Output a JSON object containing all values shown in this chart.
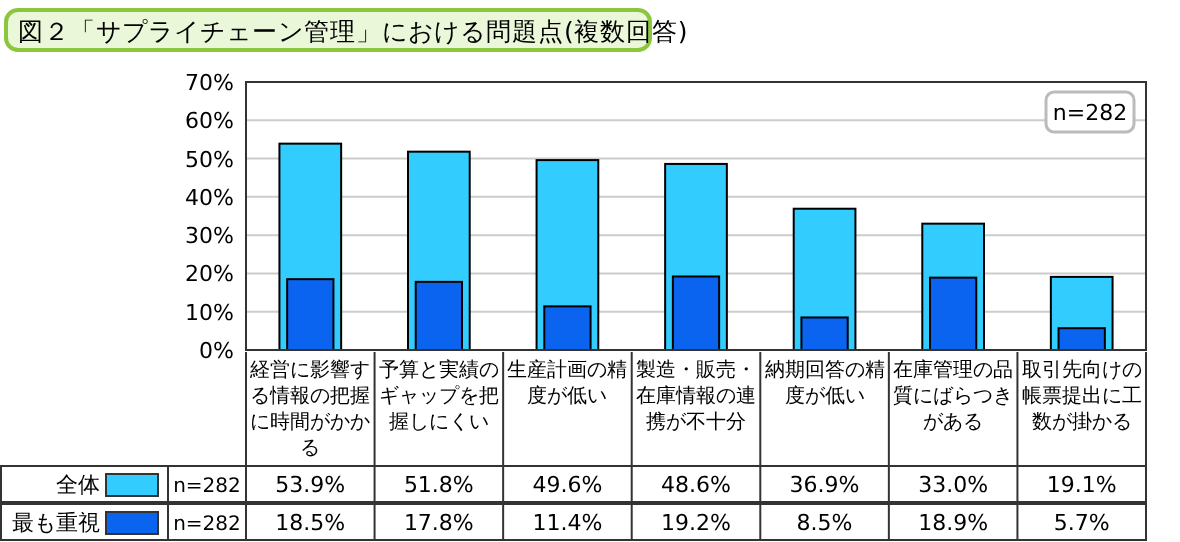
{
  "chart_data": {
    "type": "bar",
    "title": "図２「サプライチェーン管理」における問題点(複数回答)",
    "categories": [
      "経営に影響する情報の把握に時間がかかる",
      "予算と実績のギャップを把握しにくい",
      "生産計画の精度が低い",
      "製造・販売・在庫情報の連携が不十分",
      "納期回答の精度が低い",
      "在庫管理の品質にばらつきがある",
      "取引先向けの帳票提出に工数が掛かる"
    ],
    "series": [
      {
        "name": "全体",
        "color": "#33ccff",
        "values": [
          53.9,
          51.8,
          49.6,
          48.6,
          36.9,
          33.0,
          19.1
        ],
        "value_labels": [
          "53.9%",
          "51.8%",
          "49.6%",
          "48.6%",
          "36.9%",
          "33.0%",
          "19.1%"
        ]
      },
      {
        "name": "最も重視",
        "color": "#0a64f0",
        "values": [
          18.5,
          17.8,
          11.4,
          19.2,
          8.5,
          18.9,
          5.7
        ],
        "value_labels": [
          "18.5%",
          "17.8%",
          "11.4%",
          "19.2%",
          "8.5%",
          "18.9%",
          "5.7%"
        ]
      }
    ],
    "ylim": [
      0,
      70
    ],
    "yticks": [
      {
        "value": 0,
        "label": "0%"
      },
      {
        "value": 10,
        "label": "10%"
      },
      {
        "value": 20,
        "label": "20%"
      },
      {
        "value": 30,
        "label": "30%"
      },
      {
        "value": 40,
        "label": "40%"
      },
      {
        "value": 50,
        "label": "50%"
      },
      {
        "value": 60,
        "label": "60%"
      },
      {
        "value": 70,
        "label": "70%"
      }
    ],
    "grid": "y",
    "legend": "bottom",
    "annotations": [
      "n=282",
      "n=282",
      "n=282"
    ]
  }
}
